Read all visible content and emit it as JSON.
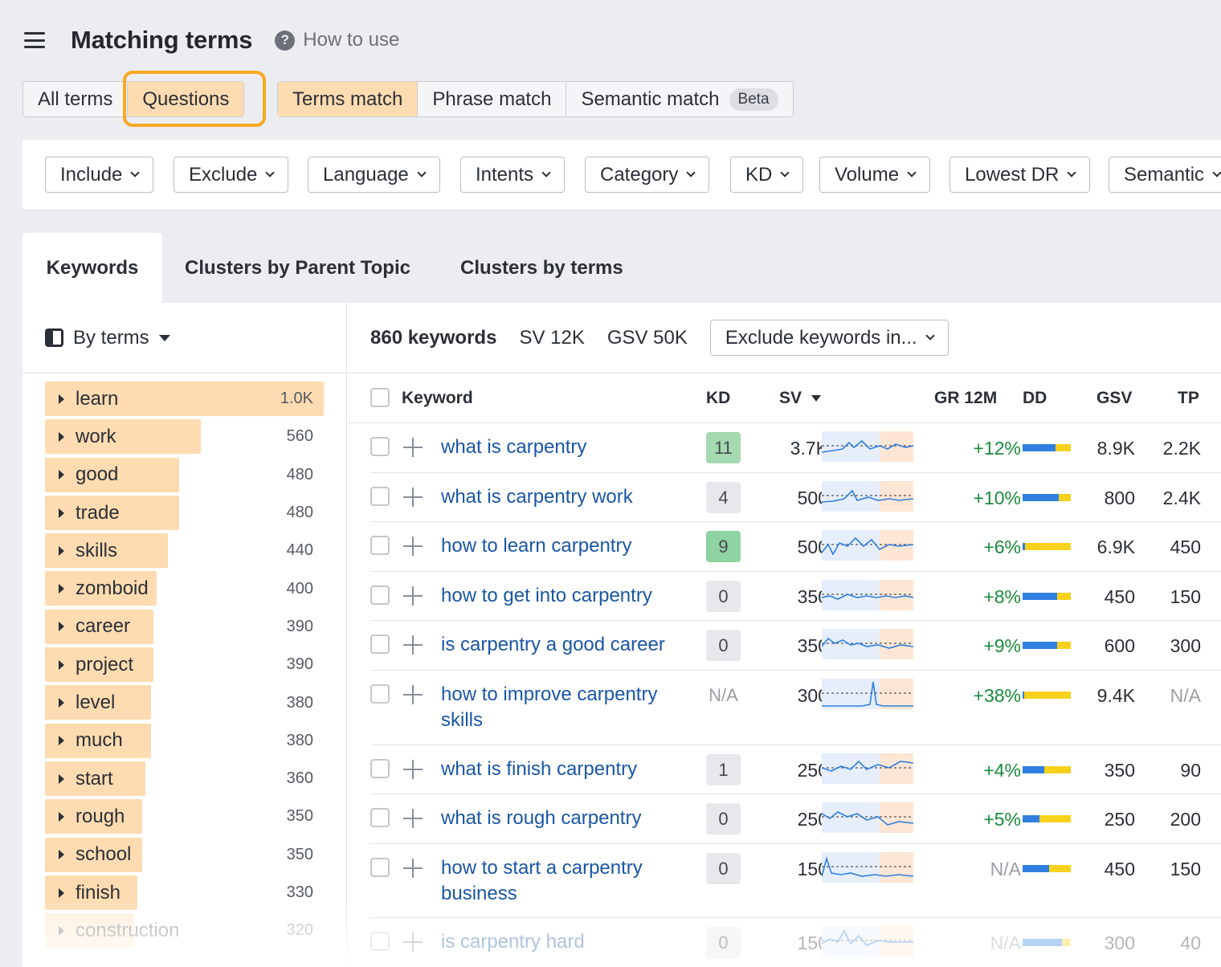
{
  "header": {
    "title": "Matching terms",
    "how_to_use": "How to use",
    "help_icon": "question-circle-icon"
  },
  "mode_tabs": [
    "All terms",
    "Questions"
  ],
  "match_tabs": [
    "Terms match",
    "Phrase match",
    "Semantic match"
  ],
  "beta_badge": "Beta",
  "filters": [
    "Include",
    "Exclude",
    "Language",
    "Intents",
    "Category",
    "KD",
    "Volume",
    "Lowest DR",
    "Semantic"
  ],
  "data_tabs": [
    "Keywords",
    "Clusters by Parent Topic",
    "Clusters by terms"
  ],
  "sidebar": {
    "group_by_label": "By terms",
    "terms": [
      {
        "name": "learn",
        "count": "1.0K",
        "share": 1.0
      },
      {
        "name": "work",
        "count": "560",
        "share": 0.56
      },
      {
        "name": "good",
        "count": "480",
        "share": 0.48
      },
      {
        "name": "trade",
        "count": "480",
        "share": 0.48
      },
      {
        "name": "skills",
        "count": "440",
        "share": 0.44
      },
      {
        "name": "zomboid",
        "count": "400",
        "share": 0.4
      },
      {
        "name": "career",
        "count": "390",
        "share": 0.39
      },
      {
        "name": "project",
        "count": "390",
        "share": 0.39
      },
      {
        "name": "level",
        "count": "380",
        "share": 0.38
      },
      {
        "name": "much",
        "count": "380",
        "share": 0.38
      },
      {
        "name": "start",
        "count": "360",
        "share": 0.36
      },
      {
        "name": "rough",
        "count": "350",
        "share": 0.35
      },
      {
        "name": "school",
        "count": "350",
        "share": 0.35
      },
      {
        "name": "finish",
        "count": "330",
        "share": 0.33
      },
      {
        "name": "construction",
        "count": "320",
        "share": 0.32
      }
    ]
  },
  "summary": {
    "keywords": "860 keywords",
    "sv": "SV 12K",
    "gsv": "GSV 50K",
    "exclude": "Exclude keywords in..."
  },
  "columns": {
    "keyword": "Keyword",
    "kd": "KD",
    "sv": "SV",
    "gr": "GR 12M",
    "dd": "DD",
    "gsv": "GSV",
    "tp": "TP"
  },
  "rows": [
    {
      "keyword": "what is carpentry",
      "kd": "11",
      "kd_color": "#a5d9b0",
      "sv": "3.7K",
      "gr": "+12%",
      "dd_blue": 0.68,
      "gsv": "8.9K",
      "tp": "2.2K"
    },
    {
      "keyword": "what is carpentry work",
      "kd": "4",
      "kd_color": "#e6e8eb",
      "sv": "500",
      "gr": "+10%",
      "dd_blue": 0.75,
      "gsv": "800",
      "tp": "2.4K"
    },
    {
      "keyword": "how to learn carpentry",
      "kd": "9",
      "kd_color": "#8fd3a2",
      "sv": "500",
      "gr": "+6%",
      "dd_blue": 0.05,
      "gsv": "6.9K",
      "tp": "450"
    },
    {
      "keyword": "how to get into carpentry",
      "kd": "0",
      "kd_color": "#e6e8eb",
      "sv": "350",
      "gr": "+8%",
      "dd_blue": 0.72,
      "gsv": "450",
      "tp": "150"
    },
    {
      "keyword": "is carpentry a good career",
      "kd": "0",
      "kd_color": "#e6e8eb",
      "sv": "350",
      "gr": "+9%",
      "dd_blue": 0.72,
      "gsv": "600",
      "tp": "300"
    },
    {
      "keyword": "how to improve carpentry skills",
      "kd": "N/A",
      "kd_color": "",
      "sv": "300",
      "gr": "+38%",
      "dd_blue": 0.04,
      "gsv": "9.4K",
      "tp": "N/A"
    },
    {
      "keyword": "what is finish carpentry",
      "kd": "1",
      "kd_color": "#e6e8eb",
      "sv": "250",
      "gr": "+4%",
      "dd_blue": 0.45,
      "gsv": "350",
      "tp": "90"
    },
    {
      "keyword": "what is rough carpentry",
      "kd": "0",
      "kd_color": "#e6e8eb",
      "sv": "250",
      "gr": "+5%",
      "dd_blue": 0.35,
      "gsv": "250",
      "tp": "200"
    },
    {
      "keyword": "how to start a carpentry business",
      "kd": "0",
      "kd_color": "#e6e8eb",
      "sv": "150",
      "gr": "N/A",
      "dd_blue": 0.55,
      "gsv": "450",
      "tp": "150"
    },
    {
      "keyword": "is carpentry hard",
      "kd": "0",
      "kd_color": "#e6e8eb",
      "sv": "150",
      "gr": "N/A",
      "dd_blue": 0.82,
      "gsv": "300",
      "tp": "40"
    }
  ],
  "colors": {
    "accent_orange": "#fedbb0",
    "highlight_ring": "#f7a823",
    "link_blue": "#1a56a6",
    "positive_green": "#1a8a3b"
  }
}
